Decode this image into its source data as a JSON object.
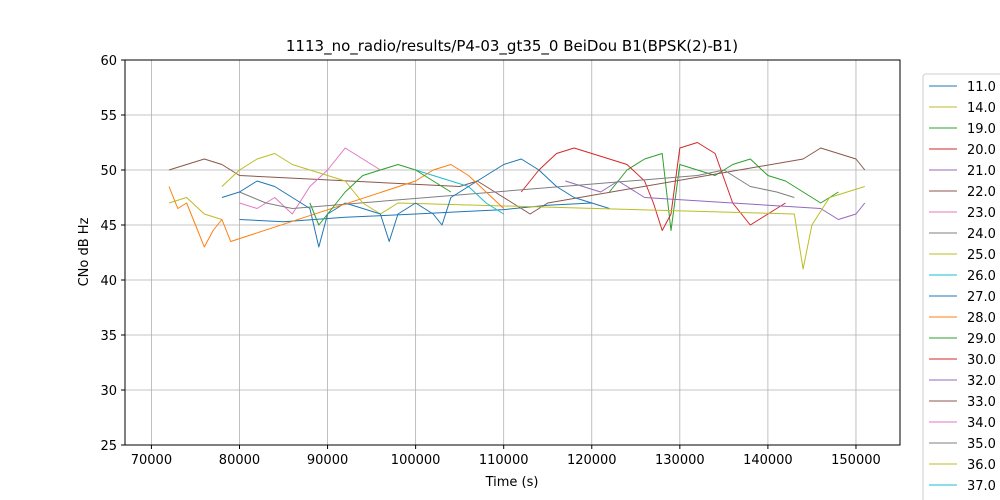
{
  "chart_data": {
    "type": "line",
    "title": "1113_no_radio/results/P4-03_gt35_0 BeiDou B1(BPSK(2)-B1)",
    "xlabel": "Time (s)",
    "ylabel": "CNo dB Hz",
    "xlim": [
      67000,
      155000
    ],
    "ylim": [
      25,
      60
    ],
    "xticks": [
      70000,
      80000,
      90000,
      100000,
      110000,
      120000,
      130000,
      140000,
      150000
    ],
    "xtick_labels": [
      "70000",
      "80000",
      "90000",
      "100000",
      "110000",
      "120000",
      "130000",
      "140000",
      "150000"
    ],
    "yticks": [
      25,
      30,
      35,
      40,
      45,
      50,
      55,
      60
    ],
    "ytick_labels": [
      "25",
      "30",
      "35",
      "40",
      "45",
      "50",
      "55",
      "60"
    ],
    "grid": true,
    "legend_position": "right",
    "series": [
      {
        "name": "11.0",
        "color": "#1f77b4",
        "x": [
          80000,
          85000,
          92000,
          100000,
          105000,
          110000,
          115000,
          120000,
          122000
        ],
        "y": [
          45.5,
          45.3,
          45.7,
          46.0,
          46.2,
          46.4,
          46.8,
          47.0,
          46.5
        ]
      },
      {
        "name": "14.0",
        "color": "#bcbd22",
        "x": [
          72000,
          74000,
          76000,
          78000
        ],
        "y": [
          47.0,
          47.5,
          46.0,
          45.5
        ]
      },
      {
        "name": "19.0",
        "color": "#2ca02c",
        "x": [
          122000,
          124000,
          126000,
          128000,
          129000,
          130000,
          132000,
          134000,
          136000,
          138000,
          140000,
          142000,
          144000,
          146000,
          148000
        ],
        "y": [
          48.0,
          50.0,
          51.0,
          51.5,
          44.5,
          50.5,
          50.0,
          49.5,
          50.5,
          51.0,
          49.5,
          49.0,
          48.0,
          47.0,
          48.0
        ]
      },
      {
        "name": "20.0",
        "color": "#d62728",
        "x": [
          112000,
          114000,
          116000,
          118000,
          120000,
          122000,
          124000,
          126000,
          127000,
          128000,
          129000,
          130000,
          132000,
          134000,
          136000,
          138000,
          140000,
          142000
        ],
        "y": [
          48.0,
          50.0,
          51.5,
          52.0,
          51.5,
          51.0,
          50.5,
          49.0,
          47.0,
          44.5,
          46.0,
          52.0,
          52.5,
          51.5,
          47.0,
          45.0,
          46.0,
          47.0
        ]
      },
      {
        "name": "21.0",
        "color": "#9467bd",
        "x": [
          117000,
          119000,
          121000,
          123000,
          125000,
          126000,
          146000,
          148000,
          150000,
          151000
        ],
        "y": [
          49.0,
          48.5,
          48.0,
          49.0,
          48.0,
          47.5,
          46.5,
          45.5,
          46.0,
          47.0
        ]
      },
      {
        "name": "22.0",
        "color": "#8c564b",
        "x": [
          72000,
          74000,
          76000,
          78000,
          80000,
          105000,
          107000,
          109000,
          111000,
          113000,
          115000,
          144000,
          146000,
          148000,
          150000,
          151000
        ],
        "y": [
          50.0,
          50.5,
          51.0,
          50.5,
          49.5,
          48.5,
          49.0,
          48.0,
          47.0,
          46.0,
          47.0,
          51.0,
          52.0,
          51.5,
          51.0,
          50.0
        ]
      },
      {
        "name": "23.0",
        "color": "#e377c2",
        "x": [
          80000,
          82000,
          84000,
          86000,
          88000,
          90000,
          92000,
          94000,
          96000
        ],
        "y": [
          47.0,
          46.5,
          47.5,
          46.0,
          48.5,
          50.0,
          52.0,
          51.0,
          50.0
        ]
      },
      {
        "name": "24.0",
        "color": "#7f7f7f",
        "x": [
          80000,
          83000,
          86000,
          132000,
          135000,
          138000,
          141000,
          143000
        ],
        "y": [
          48.0,
          47.0,
          46.5,
          49.5,
          50.0,
          48.5,
          48.0,
          47.5
        ]
      },
      {
        "name": "25.0",
        "color": "#bcbd22",
        "x": [
          78000,
          80000,
          82000,
          84000,
          86000,
          88000,
          90000,
          92000,
          94000,
          96000,
          98000,
          143000,
          144000,
          145000,
          147000,
          149000,
          151000
        ],
        "y": [
          48.5,
          50.0,
          51.0,
          51.5,
          50.5,
          50.0,
          49.5,
          49.0,
          47.0,
          46.0,
          47.0,
          46.0,
          41.0,
          45.0,
          47.5,
          48.0,
          48.5
        ]
      },
      {
        "name": "26.0",
        "color": "#17becf",
        "x": [
          100000,
          102000,
          104000,
          106000,
          108000,
          110000
        ],
        "y": [
          50.0,
          49.5,
          49.0,
          48.5,
          47.0,
          46.0
        ]
      },
      {
        "name": "27.0",
        "color": "#1f77b4",
        "x": [
          78000,
          80000,
          82000,
          84000,
          86000,
          88000,
          89000,
          90000,
          92000,
          94000,
          96000,
          97000,
          98000,
          100000,
          102000,
          103000,
          104000,
          106000,
          108000,
          110000,
          112000,
          114000,
          116000,
          118000,
          120000
        ],
        "y": [
          47.5,
          48.0,
          49.0,
          48.5,
          47.5,
          46.5,
          43.0,
          46.0,
          47.0,
          46.5,
          46.0,
          43.5,
          46.0,
          47.0,
          46.0,
          45.0,
          47.5,
          48.5,
          49.5,
          50.5,
          51.0,
          50.0,
          48.5,
          47.5,
          47.0
        ]
      },
      {
        "name": "28.0",
        "color": "#ff7f0e",
        "x": [
          72000,
          73000,
          74000,
          75000,
          76000,
          77000,
          78000,
          79000,
          100000,
          102000,
          104000,
          106000,
          108000,
          110000
        ],
        "y": [
          48.5,
          46.5,
          47.0,
          45.0,
          43.0,
          44.5,
          45.5,
          43.5,
          49.0,
          50.0,
          50.5,
          49.5,
          48.0,
          46.5
        ]
      },
      {
        "name": "29.0",
        "color": "#2ca02c",
        "x": [
          88000,
          89000,
          90000,
          92000,
          94000,
          96000,
          98000,
          100000,
          102000,
          104000
        ],
        "y": [
          47.0,
          45.0,
          46.0,
          48.0,
          49.5,
          50.0,
          50.5,
          50.0,
          49.0,
          48.0
        ]
      },
      {
        "name": "30.0",
        "color": "#d62728",
        "x": [],
        "y": []
      },
      {
        "name": "32.0",
        "color": "#9467bd",
        "x": [],
        "y": []
      },
      {
        "name": "33.0",
        "color": "#8c564b",
        "x": [],
        "y": []
      },
      {
        "name": "34.0",
        "color": "#e377c2",
        "x": [],
        "y": []
      },
      {
        "name": "35.0",
        "color": "#7f7f7f",
        "x": [],
        "y": []
      },
      {
        "name": "36.0",
        "color": "#bcbd22",
        "x": [],
        "y": []
      },
      {
        "name": "37.0",
        "color": "#17becf",
        "x": [],
        "y": []
      }
    ]
  }
}
